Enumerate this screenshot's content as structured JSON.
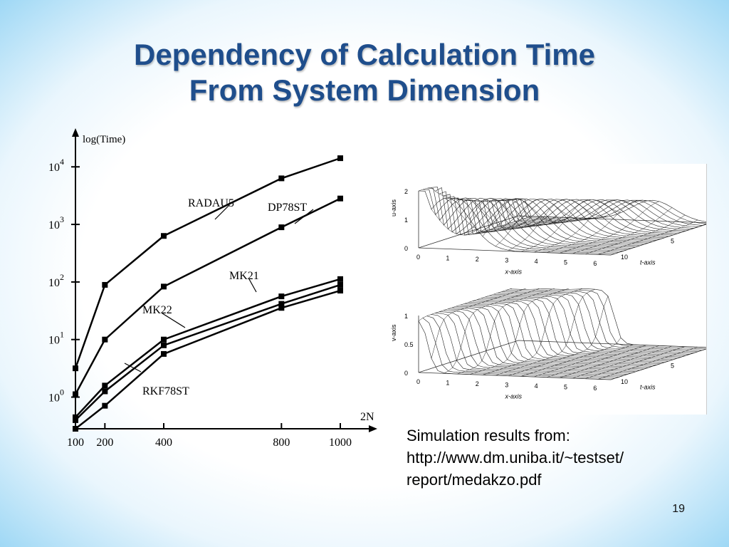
{
  "slide": {
    "title_line1": "Dependency of Calculation Time",
    "title_line2": "From System Dimension",
    "caption_line1": "Simulation results from:",
    "caption_line2": "http://www.dm.uniba.it/~testset/",
    "caption_line3": "report/medakzo.pdf",
    "page_number": "19",
    "title_color": "#1f4e8c"
  },
  "chart_data": [
    {
      "type": "line",
      "ylabel": "log(Time)",
      "xlabel": "2N",
      "log_y": true,
      "x_ticks": [
        100,
        200,
        400,
        800,
        1000
      ],
      "y_ticks": [
        "10^0",
        "10^1",
        "10^2",
        "10^3",
        "10^4"
      ],
      "xlim": [
        100,
        1000
      ],
      "ylim_log10": [
        -0.55,
        4.3
      ],
      "series": [
        {
          "name": "RADAU5",
          "x": [
            100,
            200,
            400,
            800,
            1000
          ],
          "y_log10": [
            0.5,
            1.95,
            2.8,
            3.8,
            4.15
          ]
        },
        {
          "name": "DP78ST",
          "x": [
            100,
            200,
            400,
            800,
            1000
          ],
          "y_log10": [
            0.05,
            1.0,
            1.92,
            2.95,
            3.45
          ]
        },
        {
          "name": "MK21",
          "x": [
            100,
            200,
            400,
            800,
            1000
          ],
          "y_log10": [
            -0.35,
            0.2,
            1.0,
            1.75,
            2.05
          ]
        },
        {
          "name": "MK22",
          "x": [
            100,
            200,
            400,
            800,
            1000
          ],
          "y_log10": [
            -0.4,
            0.1,
            0.9,
            1.62,
            1.95
          ]
        },
        {
          "name": "RKF78ST",
          "x": [
            100,
            200,
            400,
            800,
            1000
          ],
          "y_log10": [
            -0.55,
            -0.15,
            0.75,
            1.55,
            1.85
          ]
        }
      ],
      "label_marks": [
        {
          "text": "RADAU5",
          "series": "RADAU5"
        },
        {
          "text": "DP78ST",
          "series": "DP78ST"
        },
        {
          "text": "MK21",
          "series": "MK21"
        },
        {
          "text": "MK22",
          "series": "MK22"
        },
        {
          "text": "RKF78ST",
          "series": "RKF78ST"
        }
      ]
    },
    {
      "type": "surface",
      "xlabel": "x-axis",
      "ylabel": "u-axis",
      "tlabel": "t-axis",
      "x_ticks": [
        "0",
        "1",
        "2",
        "3",
        "4",
        "5",
        "6"
      ],
      "y_ticks": [
        "0",
        "1",
        "2"
      ],
      "t_ticks": [
        "0",
        "5",
        "10"
      ]
    },
    {
      "type": "surface",
      "xlabel": "x-axis",
      "ylabel": "v-axis",
      "tlabel": "t-axis",
      "x_ticks": [
        "0",
        "1",
        "2",
        "3",
        "4",
        "5",
        "6"
      ],
      "y_ticks": [
        "0",
        "0.5",
        "1"
      ],
      "t_ticks": [
        "0",
        "5",
        "10"
      ]
    }
  ]
}
